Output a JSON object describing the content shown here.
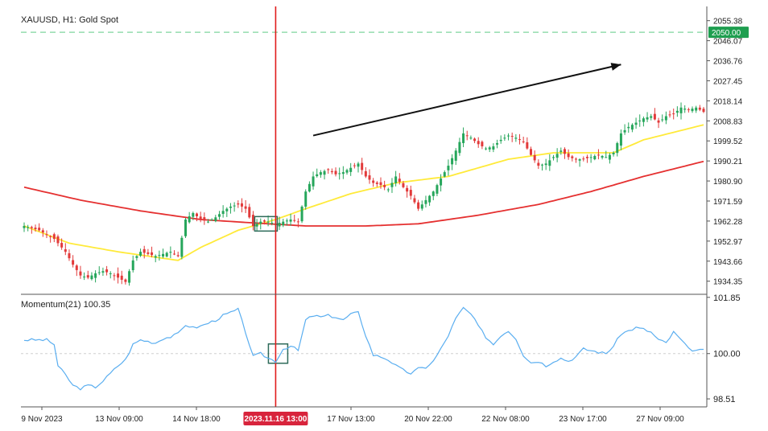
{
  "chart_data": {
    "type": "candlestick",
    "title": "XAUUSD, H1: Gold Spot",
    "price_axis": {
      "ticks": [
        "2055.38",
        "2046.07",
        "2036.76",
        "2027.45",
        "2018.14",
        "2008.83",
        "1999.52",
        "1990.21",
        "1980.90",
        "1971.59",
        "1962.28",
        "1952.97",
        "1943.66",
        "1934.35"
      ],
      "range": [
        1929.0,
        2059.0
      ]
    },
    "price_level": {
      "label": "2050.00",
      "value": 2050.0,
      "color": "#1e9e4f"
    },
    "time_axis": {
      "labels": [
        "9 Nov 2023",
        "13 Nov 09:00",
        "14 Nov 18:00",
        "17 Nov 13:00",
        "20 Nov 22:00",
        "22 Nov 08:00",
        "23 Nov 17:00",
        "27 Nov 09:00"
      ],
      "crosshair_label": "2023.11.16 13:00"
    },
    "price_path": [
      [
        0,
        1960
      ],
      [
        4,
        1958
      ],
      [
        8,
        1954
      ],
      [
        11,
        1948
      ],
      [
        13,
        1942
      ],
      [
        15,
        1937
      ],
      [
        17,
        1936
      ],
      [
        19,
        1938
      ],
      [
        21,
        1939
      ],
      [
        23,
        1938
      ],
      [
        25,
        1936
      ],
      [
        27,
        1934
      ],
      [
        29,
        1944
      ],
      [
        31,
        1948
      ],
      [
        33,
        1947
      ],
      [
        35,
        1946
      ],
      [
        37,
        1947
      ],
      [
        39,
        1948
      ],
      [
        41,
        1946
      ],
      [
        43,
        1963
      ],
      [
        45,
        1966
      ],
      [
        47,
        1963
      ],
      [
        49,
        1962
      ],
      [
        51,
        1964
      ],
      [
        53,
        1967
      ],
      [
        55,
        1969
      ],
      [
        57,
        1970
      ],
      [
        59,
        1968
      ],
      [
        61,
        1960
      ],
      [
        63,
        1962
      ],
      [
        65,
        1962
      ],
      [
        67,
        1961
      ],
      [
        69,
        1962
      ],
      [
        71,
        1963
      ],
      [
        73,
        1962
      ],
      [
        75,
        1976
      ],
      [
        77,
        1983
      ],
      [
        79,
        1985
      ],
      [
        81,
        1986
      ],
      [
        83,
        1984
      ],
      [
        85,
        1985
      ],
      [
        87,
        1987
      ],
      [
        89,
        1989
      ],
      [
        91,
        1983
      ],
      [
        93,
        1980
      ],
      [
        95,
        1979
      ],
      [
        97,
        1977
      ],
      [
        99,
        1983
      ],
      [
        101,
        1978
      ],
      [
        103,
        1974
      ],
      [
        105,
        1968
      ],
      [
        107,
        1972
      ],
      [
        109,
        1976
      ],
      [
        111,
        1982
      ],
      [
        113,
        1988
      ],
      [
        115,
        1995
      ],
      [
        117,
        2003
      ],
      [
        119,
        2001
      ],
      [
        121,
        1998
      ],
      [
        123,
        1996
      ],
      [
        125,
        1997
      ],
      [
        127,
        2000
      ],
      [
        129,
        2002
      ],
      [
        131,
        2001
      ],
      [
        133,
        1999
      ],
      [
        135,
        1993
      ],
      [
        137,
        1988
      ],
      [
        139,
        1989
      ],
      [
        141,
        1992
      ],
      [
        143,
        1995
      ],
      [
        145,
        1992
      ],
      [
        147,
        1991
      ],
      [
        149,
        1991
      ],
      [
        151,
        1992
      ],
      [
        153,
        1993
      ],
      [
        155,
        1992
      ],
      [
        157,
        1994
      ],
      [
        159,
        2003
      ],
      [
        161,
        2006
      ],
      [
        163,
        2008
      ],
      [
        165,
        2010
      ],
      [
        167,
        2011
      ],
      [
        169,
        2008
      ],
      [
        171,
        2011
      ],
      [
        173,
        2012
      ],
      [
        175,
        2015
      ],
      [
        177,
        2014
      ],
      [
        179,
        2015
      ],
      [
        181,
        2013
      ]
    ],
    "series": [
      {
        "name": "",
        "type": "ma",
        "color": "#ffea3a",
        "points": [
          [
            0,
            1960
          ],
          [
            12,
            1952
          ],
          [
            25,
            1948
          ],
          [
            41,
            1944
          ],
          [
            47,
            1950
          ],
          [
            57,
            1958
          ],
          [
            67,
            1963
          ],
          [
            75,
            1968
          ],
          [
            87,
            1975
          ],
          [
            99,
            1980
          ],
          [
            113,
            1983
          ],
          [
            129,
            1991
          ],
          [
            141,
            1994
          ],
          [
            157,
            1994
          ],
          [
            165,
            2000
          ],
          [
            181,
            2007
          ]
        ]
      },
      {
        "name": "",
        "type": "ma",
        "color": "#e53030",
        "points": [
          [
            0,
            1978
          ],
          [
            15,
            1972
          ],
          [
            31,
            1967
          ],
          [
            47,
            1963
          ],
          [
            65,
            1961
          ],
          [
            75,
            1960
          ],
          [
            91,
            1960
          ],
          [
            105,
            1961
          ],
          [
            121,
            1965
          ],
          [
            137,
            1970
          ],
          [
            151,
            1976
          ],
          [
            165,
            1983
          ],
          [
            181,
            1990
          ]
        ]
      }
    ],
    "arrow": {
      "from": [
        77,
        2002
      ],
      "to": [
        159,
        2035
      ]
    },
    "highlight": {
      "index": 67
    },
    "crosshair_index": 67,
    "indicator": {
      "label": "Momentum(21) 100.35",
      "ticks": [
        "101.85",
        "100.00",
        "98.51"
      ],
      "range": [
        98.3,
        101.95
      ],
      "baseline": 100.0,
      "color": "#5aaef0",
      "points": [
        [
          0,
          100.45
        ],
        [
          6,
          100.45
        ],
        [
          8,
          100.3
        ],
        [
          9,
          99.6
        ],
        [
          11,
          99.3
        ],
        [
          13,
          98.95
        ],
        [
          15,
          98.85
        ],
        [
          17,
          98.95
        ],
        [
          19,
          98.9
        ],
        [
          21,
          99.1
        ],
        [
          23,
          99.35
        ],
        [
          25,
          99.6
        ],
        [
          27,
          99.8
        ],
        [
          29,
          100.3
        ],
        [
          31,
          100.45
        ],
        [
          33,
          100.4
        ],
        [
          35,
          100.35
        ],
        [
          37,
          100.5
        ],
        [
          39,
          100.55
        ],
        [
          41,
          100.65
        ],
        [
          43,
          100.95
        ],
        [
          45,
          100.85
        ],
        [
          47,
          100.9
        ],
        [
          49,
          101.0
        ],
        [
          51,
          101.1
        ],
        [
          53,
          101.25
        ],
        [
          55,
          101.35
        ],
        [
          57,
          101.45
        ],
        [
          59,
          100.7
        ],
        [
          61,
          99.9
        ],
        [
          63,
          100.0
        ],
        [
          65,
          99.85
        ],
        [
          67,
          99.75
        ],
        [
          69,
          100.15
        ],
        [
          71,
          100.25
        ],
        [
          73,
          100.1
        ],
        [
          75,
          101.1
        ],
        [
          77,
          101.25
        ],
        [
          79,
          101.2
        ],
        [
          81,
          101.25
        ],
        [
          83,
          101.2
        ],
        [
          85,
          101.1
        ],
        [
          87,
          101.3
        ],
        [
          89,
          101.35
        ],
        [
          91,
          100.6
        ],
        [
          93,
          99.95
        ],
        [
          95,
          99.9
        ],
        [
          97,
          99.8
        ],
        [
          99,
          99.6
        ],
        [
          101,
          99.45
        ],
        [
          103,
          99.35
        ],
        [
          105,
          99.5
        ],
        [
          107,
          99.55
        ],
        [
          109,
          99.75
        ],
        [
          111,
          100.15
        ],
        [
          113,
          100.6
        ],
        [
          115,
          101.15
        ],
        [
          117,
          101.5
        ],
        [
          119,
          101.3
        ],
        [
          121,
          100.9
        ],
        [
          123,
          100.55
        ],
        [
          125,
          100.3
        ],
        [
          127,
          100.6
        ],
        [
          129,
          100.75
        ],
        [
          131,
          100.5
        ],
        [
          133,
          99.95
        ],
        [
          135,
          99.7
        ],
        [
          137,
          99.75
        ],
        [
          139,
          99.6
        ],
        [
          141,
          99.75
        ],
        [
          143,
          99.85
        ],
        [
          145,
          99.75
        ],
        [
          147,
          99.9
        ],
        [
          149,
          100.15
        ],
        [
          151,
          100.1
        ],
        [
          153,
          100.05
        ],
        [
          155,
          100.0
        ],
        [
          157,
          100.25
        ],
        [
          159,
          100.65
        ],
        [
          161,
          100.75
        ],
        [
          163,
          100.85
        ],
        [
          165,
          100.8
        ],
        [
          167,
          100.7
        ],
        [
          169,
          100.45
        ],
        [
          171,
          100.35
        ],
        [
          173,
          100.7
        ],
        [
          175,
          100.45
        ],
        [
          177,
          100.15
        ],
        [
          179,
          100.1
        ],
        [
          181,
          100.1
        ]
      ]
    }
  }
}
